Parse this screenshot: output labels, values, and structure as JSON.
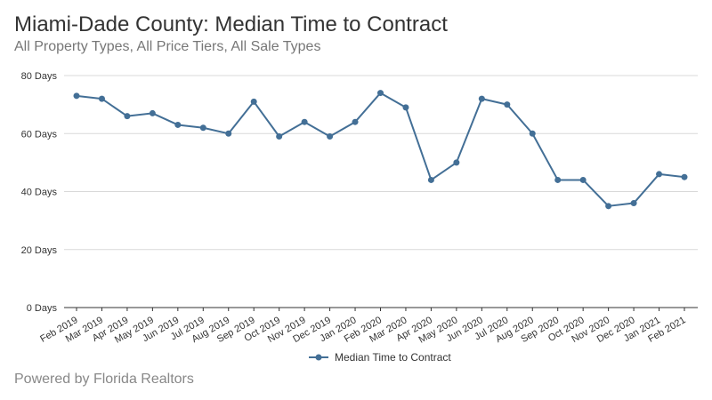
{
  "header": {
    "title": "Miami-Dade County: Median Time to Contract",
    "subtitle": "All Property Types, All Price Tiers, All Sale Types"
  },
  "footer": {
    "credit": "Powered by Florida Realtors"
  },
  "colors": {
    "series": "#436f96",
    "grid": "#d9d9d9",
    "axis": "#333333"
  },
  "chart_data": {
    "type": "line",
    "title": "Miami-Dade County: Median Time to Contract",
    "subtitle": "All Property Types, All Price Tiers, All Sale Types",
    "xlabel": "",
    "ylabel": "",
    "ylim": [
      0,
      80
    ],
    "yticks": [
      0,
      20,
      40,
      60,
      80
    ],
    "ytick_labels": [
      "0 Days",
      "20 Days",
      "40 Days",
      "60 Days",
      "80 Days"
    ],
    "grid": true,
    "legend_placement": "bottom-center",
    "categories": [
      "Feb 2019",
      "Mar 2019",
      "Apr 2019",
      "May 2019",
      "Jun 2019",
      "Jul 2019",
      "Aug 2019",
      "Sep 2019",
      "Oct 2019",
      "Nov 2019",
      "Dec 2019",
      "Jan 2020",
      "Feb 2020",
      "Mar 2020",
      "Apr 2020",
      "May 2020",
      "Jun 2020",
      "Jul 2020",
      "Aug 2020",
      "Sep 2020",
      "Oct 2020",
      "Nov 2020",
      "Dec 2020",
      "Jan 2021",
      "Feb 2021"
    ],
    "series": [
      {
        "name": "Median Time to Contract",
        "values": [
          73,
          72,
          66,
          67,
          63,
          62,
          60,
          71,
          59,
          64,
          59,
          64,
          74,
          69,
          44,
          50,
          72,
          70,
          60,
          44,
          44,
          35,
          36,
          46,
          45
        ]
      }
    ]
  }
}
